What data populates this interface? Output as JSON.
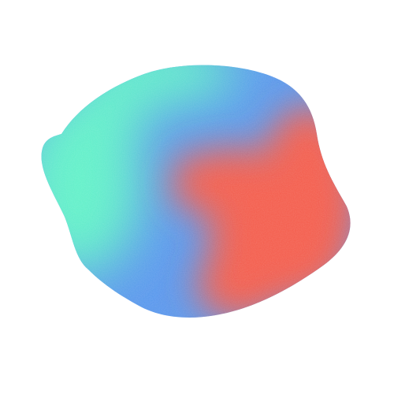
{
  "image": {
    "subject": "gradient-blob",
    "background_color": "#ffffff",
    "colors": {
      "teal": "#5ff0c8",
      "blue": "#5695ec",
      "coral": "#f35a48"
    }
  }
}
